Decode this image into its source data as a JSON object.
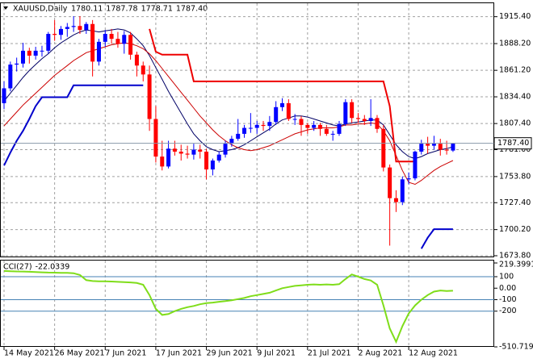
{
  "chart_data": {
    "type": "candlestick",
    "title": "XAUUSD,Daily",
    "last_labels": [
      "1780.11",
      "1787.78",
      "1778.71",
      "1787.40"
    ],
    "up_color": "#0000ff",
    "down_color": "#ff0000",
    "ylim": [
      1673,
      1929
    ],
    "yticks": [
      {
        "value": 1915.4,
        "label": "1915.40"
      },
      {
        "value": 1888.2,
        "label": "1888.20"
      },
      {
        "value": 1861.2,
        "label": "1861.20"
      },
      {
        "value": 1834.4,
        "label": "1834.40"
      },
      {
        "value": 1807.4,
        "label": "1807.40"
      },
      {
        "value": 1781,
        "label": "1781.00"
      },
      {
        "value": 1753.8,
        "label": "1753.80"
      },
      {
        "value": 1727.4,
        "label": "1727.40"
      },
      {
        "value": 1700.2,
        "label": "1700.20"
      },
      {
        "value": 1673.8,
        "label": "1673.80"
      }
    ],
    "xticks": [
      {
        "value": 0,
        "label": "14 May 2021"
      },
      {
        "value": 8,
        "label": "26 May 2021"
      },
      {
        "value": 16,
        "label": "7 Jun 2021"
      },
      {
        "value": 24,
        "label": "17 Jun 2021"
      },
      {
        "value": 32,
        "label": "29 Jun 2021"
      },
      {
        "value": 40,
        "label": "9 Jul 2021"
      },
      {
        "value": 48,
        "label": "21 Jul 2021"
      },
      {
        "value": 56,
        "label": "2 Aug 2021"
      },
      {
        "value": 64,
        "label": "12 Aug 2021"
      }
    ],
    "grid": true,
    "ohlc": [
      [
        1828,
        1850,
        1822,
        1843
      ],
      [
        1843,
        1870,
        1840,
        1867
      ],
      [
        1867,
        1874,
        1860,
        1868
      ],
      [
        1868,
        1889,
        1864,
        1881
      ],
      [
        1881,
        1884,
        1868,
        1876
      ],
      [
        1876,
        1885,
        1872,
        1881
      ],
      [
        1881,
        1886,
        1875,
        1881
      ],
      [
        1881,
        1900,
        1878,
        1898
      ],
      [
        1898,
        1912,
        1891,
        1897
      ],
      [
        1897,
        1906,
        1892,
        1903
      ],
      [
        1903,
        1909,
        1895,
        1905
      ],
      [
        1905,
        1916,
        1900,
        1906
      ],
      [
        1906,
        1916,
        1898,
        1902
      ],
      [
        1902,
        1910,
        1898,
        1908
      ],
      [
        1908,
        1912,
        1855,
        1870
      ],
      [
        1870,
        1893,
        1866,
        1890
      ],
      [
        1890,
        1902,
        1885,
        1898
      ],
      [
        1898,
        1903,
        1888,
        1893
      ],
      [
        1893,
        1900,
        1884,
        1888
      ],
      [
        1888,
        1901,
        1878,
        1897
      ],
      [
        1897,
        1900,
        1872,
        1877
      ],
      [
        1877,
        1880,
        1855,
        1866
      ],
      [
        1866,
        1870,
        1850,
        1857
      ],
      [
        1857,
        1866,
        1800,
        1812
      ],
      [
        1812,
        1825,
        1768,
        1774
      ],
      [
        1774,
        1790,
        1760,
        1764
      ],
      [
        1764,
        1790,
        1762,
        1782
      ],
      [
        1782,
        1790,
        1775,
        1779
      ],
      [
        1779,
        1786,
        1770,
        1777
      ],
      [
        1777,
        1785,
        1772,
        1776
      ],
      [
        1776,
        1787,
        1771,
        1781
      ],
      [
        1781,
        1786,
        1772,
        1779
      ],
      [
        1779,
        1782,
        1751,
        1761
      ],
      [
        1761,
        1772,
        1755,
        1770
      ],
      [
        1770,
        1779,
        1768,
        1776
      ],
      [
        1776,
        1790,
        1773,
        1787
      ],
      [
        1787,
        1795,
        1784,
        1792
      ],
      [
        1792,
        1812,
        1790,
        1797
      ],
      [
        1797,
        1806,
        1793,
        1803
      ],
      [
        1803,
        1818,
        1798,
        1803
      ],
      [
        1803,
        1810,
        1797,
        1806
      ],
      [
        1806,
        1810,
        1800,
        1805
      ],
      [
        1805,
        1815,
        1800,
        1809
      ],
      [
        1809,
        1830,
        1806,
        1824
      ],
      [
        1824,
        1833,
        1820,
        1828
      ],
      [
        1828,
        1832,
        1810,
        1812
      ],
      [
        1812,
        1817,
        1806,
        1812
      ],
      [
        1812,
        1815,
        1795,
        1806
      ],
      [
        1806,
        1808,
        1797,
        1803
      ],
      [
        1803,
        1810,
        1800,
        1806
      ],
      [
        1806,
        1808,
        1795,
        1802
      ],
      [
        1802,
        1806,
        1795,
        1797
      ],
      [
        1797,
        1800,
        1790,
        1797
      ],
      [
        1797,
        1810,
        1795,
        1807
      ],
      [
        1807,
        1832,
        1805,
        1829
      ],
      [
        1829,
        1832,
        1808,
        1813
      ],
      [
        1813,
        1818,
        1808,
        1812
      ],
      [
        1812,
        1816,
        1806,
        1810
      ],
      [
        1810,
        1832,
        1805,
        1813
      ],
      [
        1813,
        1816,
        1798,
        1802
      ],
      [
        1802,
        1806,
        1759,
        1763
      ],
      [
        1763,
        1766,
        1684,
        1732
      ],
      [
        1732,
        1740,
        1718,
        1728
      ],
      [
        1728,
        1754,
        1725,
        1751
      ],
      [
        1751,
        1758,
        1746,
        1752
      ],
      [
        1752,
        1780,
        1750,
        1779
      ],
      [
        1779,
        1791,
        1776,
        1787
      ],
      [
        1787,
        1794,
        1777,
        1785
      ],
      [
        1785,
        1795,
        1781,
        1787
      ],
      [
        1787,
        1792,
        1775,
        1781
      ],
      [
        1781,
        1790,
        1776,
        1780.11
      ],
      [
        1780.11,
        1787.78,
        1778.71,
        1787.4
      ]
    ],
    "series": [
      {
        "color": "#000066",
        "width": 1,
        "values": [
          1830,
          1838,
          1846,
          1854,
          1861,
          1867,
          1873,
          1878,
          1884,
          1889,
          1893,
          1897,
          1900,
          1902,
          1901,
          1900,
          1901,
          1902,
          1903,
          1902,
          1899,
          1893,
          1886,
          1876,
          1864,
          1852,
          1840,
          1829,
          1818,
          1807,
          1797,
          1790,
          1784,
          1781,
          1779,
          1780,
          1781,
          1783,
          1786,
          1790,
          1794,
          1798,
          1802,
          1807,
          1811,
          1813,
          1815,
          1815,
          1814,
          1812,
          1810,
          1808,
          1806,
          1805,
          1807,
          1808,
          1809,
          1810,
          1811,
          1811,
          1806,
          1796,
          1786,
          1779,
          1774,
          1772,
          1774,
          1777,
          1779,
          1781,
          1782,
          1784
        ]
      },
      {
        "color": "#cc0000",
        "width": 1,
        "values": [
          1805,
          1812,
          1819,
          1826,
          1832,
          1838,
          1844,
          1850,
          1856,
          1861,
          1866,
          1871,
          1875,
          1879,
          1881,
          1883,
          1885,
          1887,
          1888,
          1889,
          1888,
          1886,
          1883,
          1878,
          1871,
          1863,
          1855,
          1847,
          1839,
          1831,
          1823,
          1815,
          1808,
          1801,
          1795,
          1790,
          1786,
          1783,
          1781,
          1780,
          1781,
          1783,
          1785,
          1788,
          1791,
          1794,
          1797,
          1799,
          1801,
          1802,
          1803,
          1803,
          1803,
          1804,
          1806,
          1806,
          1807,
          1807,
          1808,
          1807,
          1800,
          1790,
          1775,
          1760,
          1748,
          1746,
          1750,
          1755,
          1760,
          1764,
          1767,
          1770
        ]
      },
      {
        "color": "#ee0000",
        "width": 2,
        "values": [
          null,
          null,
          null,
          null,
          null,
          null,
          null,
          null,
          null,
          null,
          null,
          null,
          null,
          null,
          null,
          null,
          null,
          null,
          null,
          null,
          null,
          null,
          null,
          1903,
          1880,
          1877,
          1877,
          1877,
          1877,
          1877,
          1850,
          1850,
          1850,
          1850,
          1850,
          1850,
          1850,
          1850,
          1850,
          1850,
          1850,
          1850,
          1850,
          1850,
          1850,
          1850,
          1850,
          1850,
          1850,
          1850,
          1850,
          1850,
          1850,
          1850,
          1850,
          1850,
          1850,
          1850,
          1850,
          1850,
          1850,
          1825,
          1769,
          1769,
          1769,
          1769,
          null,
          null,
          null,
          null,
          null,
          null
        ]
      },
      {
        "color": "#0000cc",
        "width": 2,
        "values": [
          1765,
          1778,
          1790,
          1800,
          1812,
          1825,
          1834,
          1834,
          1834,
          1834,
          1834,
          1846,
          1846,
          1846,
          1846,
          1846,
          1846,
          1846,
          1846,
          1846,
          1846,
          1846,
          1846,
          null,
          null,
          null,
          null,
          null,
          null,
          null,
          null,
          null,
          null,
          null,
          null,
          null,
          null,
          null,
          null,
          null,
          null,
          null,
          null,
          null,
          null,
          null,
          null,
          null,
          null,
          null,
          null,
          null,
          null,
          null,
          null,
          null,
          null,
          null,
          null,
          null,
          null,
          null,
          null,
          null,
          null,
          null,
          1681,
          1692,
          1700.6,
          1700.6,
          1700.6,
          1700.6
        ]
      }
    ],
    "cci": {
      "name": "CCI(27)",
      "last_label": "-22.0339",
      "color": "#7fdd1a",
      "ylim": [
        -510.7195,
        219.3991
      ],
      "yticks": [
        219.3991,
        100,
        {
          "value": 0,
          "label": "0.00"
        },
        -100,
        -200,
        -510.7195
      ],
      "levels": [
        100,
        -100,
        -200
      ],
      "values": [
        150,
        148,
        146,
        145,
        143,
        140,
        138,
        136,
        135,
        134,
        133,
        130,
        115,
        70,
        62,
        60,
        60,
        58,
        55,
        53,
        50,
        45,
        30,
        -60,
        -180,
        -233,
        -225,
        -200,
        -180,
        -165,
        -155,
        -140,
        -130,
        -125,
        -118,
        -113,
        -105,
        -95,
        -85,
        -70,
        -60,
        -50,
        -40,
        -20,
        0,
        10,
        20,
        25,
        30,
        33,
        30,
        33,
        30,
        35,
        80,
        120,
        100,
        80,
        67,
        30,
        -150,
        -350,
        -467,
        -330,
        -220,
        -150,
        -100,
        -60,
        -30,
        -20,
        -25,
        -22.0339
      ]
    }
  }
}
